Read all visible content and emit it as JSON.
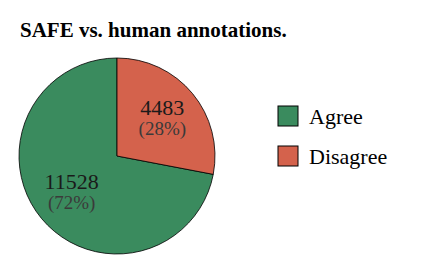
{
  "chart_data": {
    "type": "pie",
    "title": "SAFE vs. human annotations.",
    "categories": [
      "Agree",
      "Disagree"
    ],
    "values": [
      11528,
      4483
    ],
    "percentages": [
      72,
      28
    ],
    "percentage_labels": [
      "(72%)",
      "(28%)"
    ],
    "colors": [
      "#3a8b5e",
      "#d4624c"
    ],
    "legend": "right",
    "data_labels": true
  }
}
